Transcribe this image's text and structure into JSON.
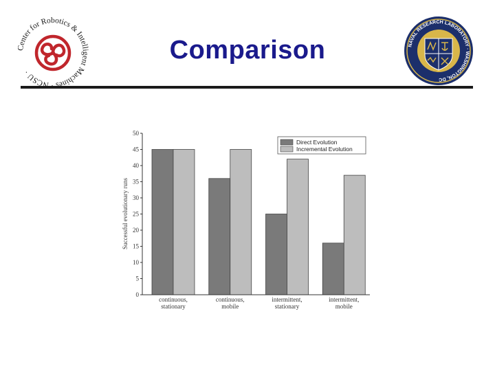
{
  "slide": {
    "title": "Comparison"
  },
  "logos": {
    "left": {
      "name": "ncsu-crim-logo",
      "text": "Center for Robotics & Intelligent Machines · NCSU ·"
    },
    "right": {
      "name": "naval-research-laboratory-seal",
      "text": "NAVAL RESEARCH LABORATORY · WASHINGTON, DC"
    }
  },
  "chart_data": {
    "type": "bar",
    "categories": [
      [
        "continuous,",
        "stationary"
      ],
      [
        "continuous,",
        "mobile"
      ],
      [
        "intermittent,",
        "stationary"
      ],
      [
        "intermittent,",
        "mobile"
      ]
    ],
    "series": [
      {
        "name": "Direct Evolution",
        "values": [
          45,
          36,
          25,
          16
        ],
        "color": "#7a7a7a"
      },
      {
        "name": "Incremental Evolution",
        "values": [
          45,
          45,
          42,
          37
        ],
        "color": "#bdbdbd"
      }
    ],
    "ylabel": "Successful evolutionary runs",
    "xlabel": "",
    "ylim": [
      0,
      50
    ],
    "yticks": [
      "0",
      "5",
      "10",
      "15",
      "20",
      "25",
      "30",
      "35",
      "40",
      "45",
      "50"
    ],
    "grid": false,
    "legend": "top-right"
  },
  "colors": {
    "title": "#1a1a8c",
    "rule": "#1a1a1a",
    "logo_red": "#c0262c",
    "seal_navy": "#1c2f6b",
    "seal_gold": "#d8b64a"
  }
}
